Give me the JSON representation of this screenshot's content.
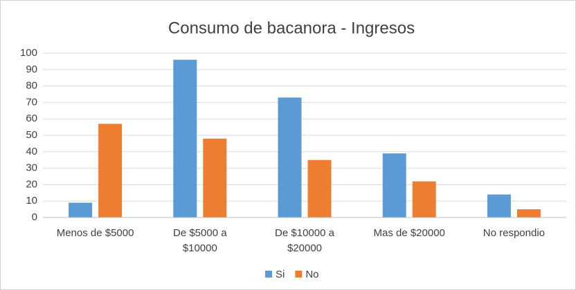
{
  "chart_data": {
    "type": "bar",
    "title": "Consumo de bacanora - Ingresos",
    "categories": [
      "Menos de $5000",
      "De $5000 a $10000",
      "De $10000 a $20000",
      "Mas de $20000",
      "No respondio"
    ],
    "series": [
      {
        "name": "Si",
        "color": "#5b9bd5",
        "values": [
          9,
          96,
          73,
          39,
          14
        ]
      },
      {
        "name": "No",
        "color": "#ed7d31",
        "values": [
          57,
          48,
          35,
          22,
          5
        ]
      }
    ],
    "ylim": [
      0,
      100
    ],
    "yticks": [
      0,
      10,
      20,
      30,
      40,
      50,
      60,
      70,
      80,
      90,
      100
    ],
    "grid": true,
    "legend": "bottom"
  }
}
